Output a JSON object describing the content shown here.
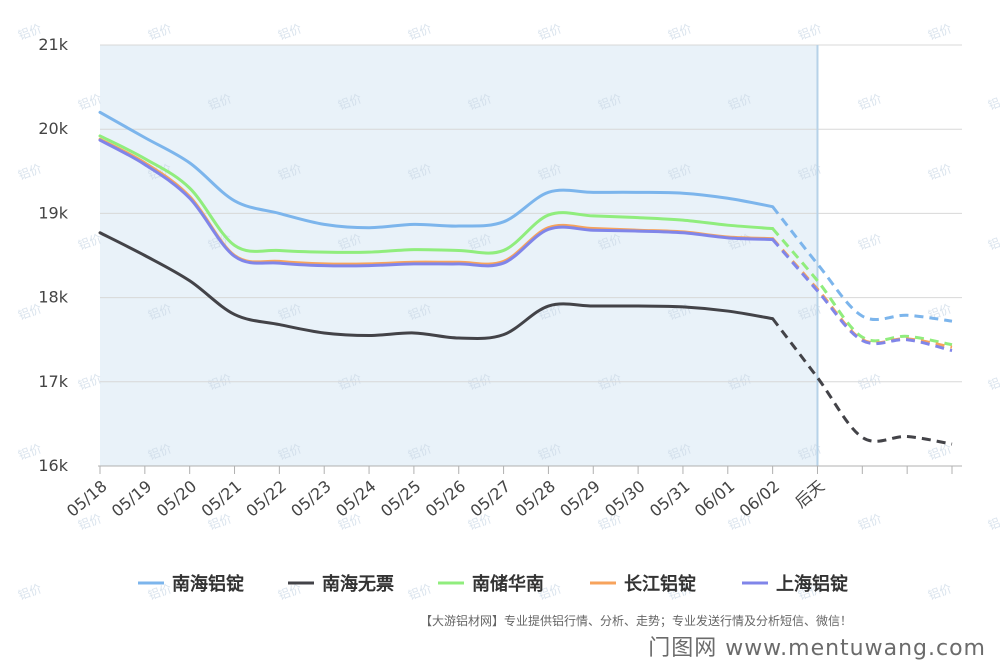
{
  "chart_data": {
    "type": "line",
    "categories": [
      "05/18",
      "05/19",
      "05/20",
      "05/21",
      "05/22",
      "05/23",
      "05/24",
      "05/25",
      "05/26",
      "05/27",
      "05/28",
      "05/29",
      "05/30",
      "05/31",
      "06/01",
      "06/02",
      "后天",
      "",
      "",
      ""
    ],
    "ylim": [
      16000,
      21000
    ],
    "yticks": [
      16000,
      17000,
      18000,
      19000,
      20000,
      21000
    ],
    "ytick_labels": [
      "16k",
      "17k",
      "18k",
      "19k",
      "20k",
      "21k"
    ],
    "forecast_start_index": 15,
    "forecast_band_end_index": 16,
    "series": [
      {
        "name": "南海铝锭",
        "color": "#7cb5ec",
        "values": [
          20200,
          19900,
          19600,
          19150,
          19000,
          18870,
          18830,
          18870,
          18850,
          18900,
          19250,
          19250,
          19250,
          19240,
          19180,
          19080,
          18400,
          17780,
          17790,
          17720
        ]
      },
      {
        "name": "南海无票",
        "color": "#434348",
        "values": [
          18770,
          18500,
          18200,
          17800,
          17680,
          17580,
          17550,
          17580,
          17520,
          17560,
          17900,
          17900,
          17900,
          17890,
          17840,
          17750,
          17050,
          16340,
          16350,
          16260
        ]
      },
      {
        "name": "南储华南",
        "color": "#90ed7d",
        "values": [
          19920,
          19650,
          19300,
          18620,
          18560,
          18540,
          18540,
          18570,
          18560,
          18560,
          18980,
          18970,
          18950,
          18920,
          18860,
          18820,
          18200,
          17530,
          17540,
          17440
        ]
      },
      {
        "name": "长江铝锭",
        "color": "#f7a35c",
        "values": [
          19880,
          19600,
          19200,
          18500,
          18430,
          18400,
          18400,
          18420,
          18420,
          18430,
          18830,
          18820,
          18800,
          18780,
          18720,
          18700,
          18100,
          17500,
          17510,
          17410
        ]
      },
      {
        "name": "上海铝锭",
        "color": "#8085e9",
        "values": [
          19870,
          19580,
          19180,
          18490,
          18410,
          18380,
          18380,
          18400,
          18400,
          18410,
          18810,
          18800,
          18790,
          18770,
          18710,
          18690,
          18080,
          17490,
          17500,
          17370
        ]
      }
    ],
    "legend_position": "bottom",
    "grid": true
  },
  "watermark_label": "铝价",
  "footer": "【大游铝材网】专业提供铝行情、分析、走势；专业发送行情及分析短信、微信！",
  "site_watermark": "门图网 www.mentuwang.com"
}
